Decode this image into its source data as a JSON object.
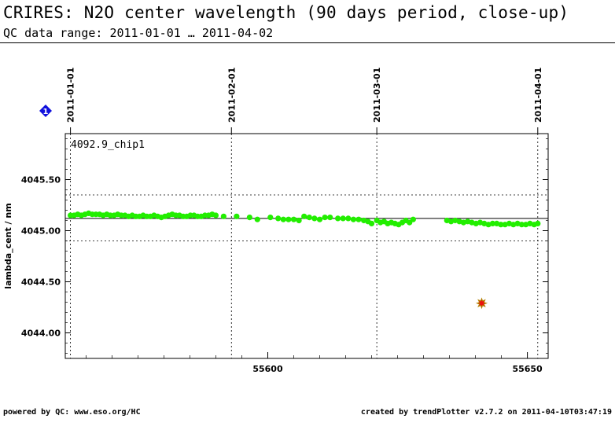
{
  "header": {
    "title": "CRIRES: N2O center wavelength (90 days period, close-up)",
    "subtitle": "QC data range: 2011-01-01 … 2011-04-02"
  },
  "footer": {
    "left": "powered by QC: www.eso.org/HC",
    "right": "created by trendPlotter v2.7.2 on 2011-04-10T03:47:19"
  },
  "badge": {
    "label": "1",
    "color": "#1010dd"
  },
  "chart_data": {
    "type": "scatter",
    "panel_label": "4092.9_chip1",
    "ylabel": "lambda_cent / nm",
    "xlim": [
      55561,
      55654
    ],
    "ylim": [
      4043.75,
      4045.95
    ],
    "x_ticks": [
      55600,
      55650
    ],
    "x_tick_labels": [
      "55600",
      "55650"
    ],
    "y_ticks": [
      4044.0,
      4044.5,
      4045.0,
      4045.5
    ],
    "y_tick_labels": [
      "4044.00",
      "4044.50",
      "4045.00",
      "4045.50"
    ],
    "date_markers": [
      {
        "x": 55562,
        "label": "2011-01-01"
      },
      {
        "x": 55593,
        "label": "2011-02-01"
      },
      {
        "x": 55621,
        "label": "2011-03-01"
      },
      {
        "x": 55652,
        "label": "2011-04-01"
      }
    ],
    "reference_line": 4045.12,
    "threshold_lines": [
      4045.35,
      4044.9
    ],
    "grid": false,
    "series": [
      {
        "color": "#22ee00",
        "points": [
          [
            55562.0,
            4045.15
          ],
          [
            55562.7,
            4045.15
          ],
          [
            55563.4,
            4045.16
          ],
          [
            55564.1,
            4045.15
          ],
          [
            55564.8,
            4045.16
          ],
          [
            55565.5,
            4045.17
          ],
          [
            55566.2,
            4045.16
          ],
          [
            55566.9,
            4045.16
          ],
          [
            55567.6,
            4045.16
          ],
          [
            55568.3,
            4045.15
          ],
          [
            55569.0,
            4045.16
          ],
          [
            55569.7,
            4045.15
          ],
          [
            55570.4,
            4045.15
          ],
          [
            55571.1,
            4045.16
          ],
          [
            55571.8,
            4045.15
          ],
          [
            55572.5,
            4045.15
          ],
          [
            55573.2,
            4045.14
          ],
          [
            55573.9,
            4045.15
          ],
          [
            55574.6,
            4045.14
          ],
          [
            55575.3,
            4045.14
          ],
          [
            55576.0,
            4045.15
          ],
          [
            55576.7,
            4045.14
          ],
          [
            55577.4,
            4045.14
          ],
          [
            55578.1,
            4045.15
          ],
          [
            55578.8,
            4045.14
          ],
          [
            55579.5,
            4045.13
          ],
          [
            55580.2,
            4045.14
          ],
          [
            55580.9,
            4045.15
          ],
          [
            55581.6,
            4045.16
          ],
          [
            55582.3,
            4045.15
          ],
          [
            55583.0,
            4045.15
          ],
          [
            55583.7,
            4045.14
          ],
          [
            55584.4,
            4045.14
          ],
          [
            55585.1,
            4045.15
          ],
          [
            55585.8,
            4045.15
          ],
          [
            55586.5,
            4045.14
          ],
          [
            55587.2,
            4045.14
          ],
          [
            55587.9,
            4045.15
          ],
          [
            55588.6,
            4045.15
          ],
          [
            55589.3,
            4045.16
          ],
          [
            55590.0,
            4045.15
          ],
          [
            55591.5,
            4045.14
          ],
          [
            55594.0,
            4045.14
          ],
          [
            55596.5,
            4045.13
          ],
          [
            55598.0,
            4045.11
          ],
          [
            55600.5,
            4045.13
          ],
          [
            55602.0,
            4045.12
          ],
          [
            55603.0,
            4045.11
          ],
          [
            55604.0,
            4045.11
          ],
          [
            55605.0,
            4045.11
          ],
          [
            55606.0,
            4045.1
          ],
          [
            55607.0,
            4045.14
          ],
          [
            55608.0,
            4045.13
          ],
          [
            55609.0,
            4045.12
          ],
          [
            55610.0,
            4045.11
          ],
          [
            55611.0,
            4045.13
          ],
          [
            55612.0,
            4045.13
          ],
          [
            55613.5,
            4045.12
          ],
          [
            55614.5,
            4045.12
          ],
          [
            55615.5,
            4045.12
          ],
          [
            55616.5,
            4045.11
          ],
          [
            55617.5,
            4045.11
          ],
          [
            55618.5,
            4045.1
          ],
          [
            55619.3,
            4045.09
          ],
          [
            55620.0,
            4045.07
          ],
          [
            55621.0,
            4045.1
          ],
          [
            55621.7,
            4045.08
          ],
          [
            55622.4,
            4045.09
          ],
          [
            55623.1,
            4045.07
          ],
          [
            55623.8,
            4045.08
          ],
          [
            55624.5,
            4045.07
          ],
          [
            55625.2,
            4045.06
          ],
          [
            55625.9,
            4045.08
          ],
          [
            55626.6,
            4045.1
          ],
          [
            55627.3,
            4045.08
          ],
          [
            55628.0,
            4045.11
          ],
          [
            55634.5,
            4045.1
          ],
          [
            55635.3,
            4045.09
          ],
          [
            55636.1,
            4045.1
          ],
          [
            55636.9,
            4045.09
          ],
          [
            55637.7,
            4045.08
          ],
          [
            55638.5,
            4045.09
          ],
          [
            55639.3,
            4045.08
          ],
          [
            55640.1,
            4045.07
          ],
          [
            55640.9,
            4045.08
          ],
          [
            55641.7,
            4045.07
          ],
          [
            55642.5,
            4045.06
          ],
          [
            55643.3,
            4045.07
          ],
          [
            55644.1,
            4045.07
          ],
          [
            55644.9,
            4045.06
          ],
          [
            55645.7,
            4045.06
          ],
          [
            55646.5,
            4045.07
          ],
          [
            55647.3,
            4045.06
          ],
          [
            55648.1,
            4045.07
          ],
          [
            55648.9,
            4045.06
          ],
          [
            55649.7,
            4045.06
          ],
          [
            55650.5,
            4045.07
          ],
          [
            55651.3,
            4045.06
          ],
          [
            55652.0,
            4045.07
          ]
        ]
      }
    ],
    "outliers": [
      {
        "x": 55641.2,
        "y": 4044.29,
        "color": "#ee1111",
        "edge": "#b08000"
      }
    ]
  }
}
